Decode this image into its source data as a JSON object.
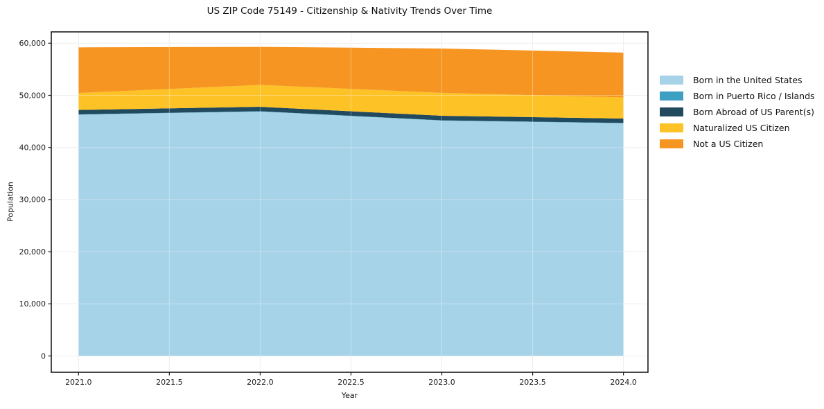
{
  "title": "US ZIP Code 75149 - Citizenship & Nativity Trends Over Time",
  "chart_data": {
    "type": "area",
    "stacked": true,
    "title": "US ZIP Code 75149 - Citizenship & Nativity Trends Over Time",
    "xlabel": "Year",
    "ylabel": "Population",
    "x": [
      2021,
      2022,
      2023,
      2024
    ],
    "series": [
      {
        "name": "Born in the United States",
        "color": "#a6d3e8",
        "values": [
          46300,
          46900,
          45150,
          44650
        ]
      },
      {
        "name": "Born in Puerto Rico / Islands",
        "color": "#3da0c2",
        "values": [
          50,
          50,
          50,
          50
        ]
      },
      {
        "name": "Born Abroad of US Parent(s)",
        "color": "#214a5e",
        "values": [
          850,
          850,
          880,
          850
        ]
      },
      {
        "name": "Naturalized US Citizen",
        "color": "#fcc226",
        "values": [
          3250,
          4200,
          4400,
          4050
        ]
      },
      {
        "name": "Not a US Citizen",
        "color": "#f79522",
        "values": [
          8750,
          7300,
          8500,
          8600
        ]
      }
    ],
    "totals": [
      59200,
      59300,
      58980,
      58200
    ],
    "xlim": [
      2020.85,
      2024.135
    ],
    "ylim": [
      -3125,
      62170
    ],
    "x_ticks": {
      "values": [
        2021.0,
        2021.5,
        2022.0,
        2022.5,
        2023.0,
        2023.5,
        2024.0
      ],
      "labels": [
        "2021.0",
        "2021.5",
        "2022.0",
        "2022.5",
        "2023.0",
        "2023.5",
        "2024.0"
      ]
    },
    "y_ticks": {
      "values": [
        0,
        10000,
        20000,
        30000,
        40000,
        50000,
        60000
      ],
      "labels": [
        "0",
        "10,000",
        "20,000",
        "30,000",
        "40,000",
        "50,000",
        "60,000"
      ]
    },
    "grid": true,
    "legend_position": "right",
    "colors": {
      "axis": "#1a1a1a",
      "grid_under": "#e7e7e7",
      "grid_over": "rgba(255,255,255,0.35)",
      "background": "#ffffff"
    }
  }
}
